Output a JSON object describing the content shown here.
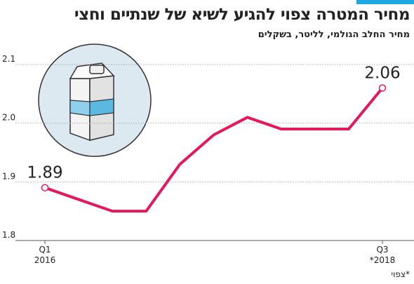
{
  "chart_data": {
    "type": "line",
    "title": "מחיר המטרה צפוי להגיע לשיא של שנתיים וחצי",
    "subtitle": "מחיר החלב הגולמי, לליטר, בשקלים",
    "footnote": "*צפוי",
    "categories": [
      "Q1\n2016",
      null,
      null,
      null,
      null,
      null,
      null,
      null,
      null,
      null,
      "Q3\n*2018"
    ],
    "series": [
      {
        "name": null,
        "color": "#e5175f",
        "values": [
          1.89,
          1.87,
          1.85,
          1.85,
          1.93,
          1.98,
          2.01,
          1.99,
          1.99,
          1.99,
          2.06
        ],
        "value_labels": [
          "1.89",
          null,
          null,
          null,
          null,
          null,
          null,
          null,
          null,
          null,
          "2.06"
        ]
      }
    ],
    "ylim": [
      1.8,
      2.1
    ],
    "yticks": [
      1.8,
      1.9,
      {
        "value": 2,
        "label": "2.0"
      },
      2.1
    ],
    "grid": true
  }
}
